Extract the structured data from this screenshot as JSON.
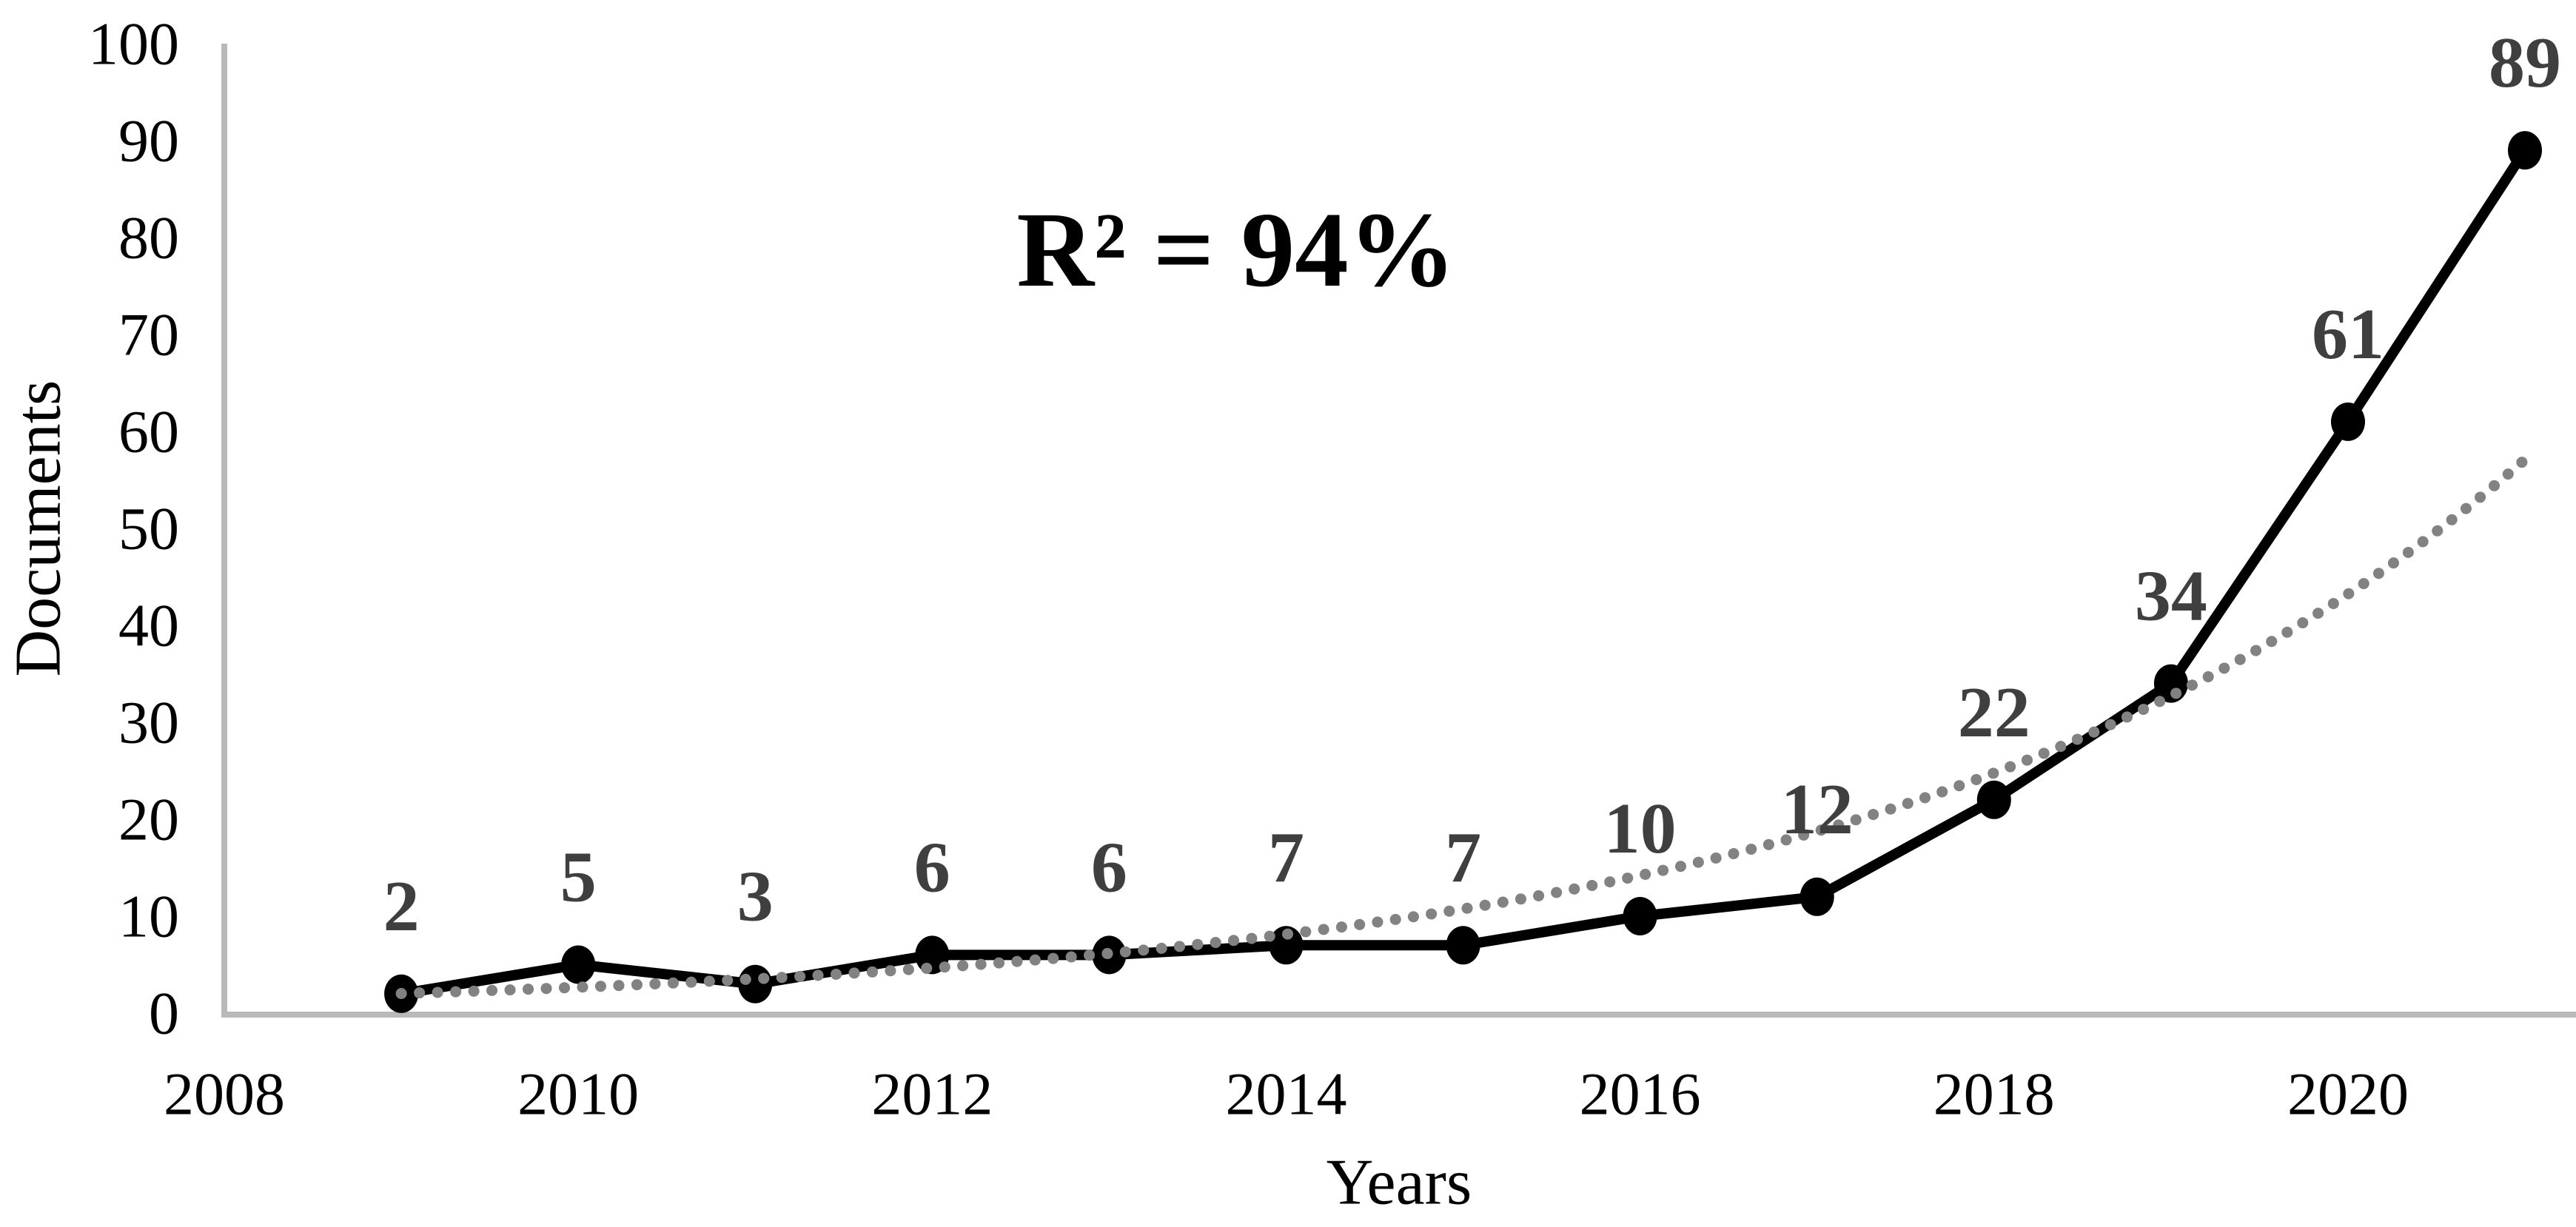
{
  "chart_data": {
    "type": "line",
    "title": "",
    "xlabel": "Years",
    "ylabel": "Documents",
    "x": [
      2009,
      2010,
      2011,
      2012,
      2013,
      2014,
      2015,
      2016,
      2017,
      2018,
      2019,
      2020,
      2021
    ],
    "series": [
      {
        "name": "Documents",
        "values": [
          2,
          5,
          3,
          6,
          6,
          7,
          7,
          10,
          12,
          22,
          34,
          61,
          89
        ],
        "color": "#000000",
        "line_style": "solid",
        "marker": "circle",
        "marker_color": "#000000"
      }
    ],
    "data_labels": [
      "2",
      "5",
      "3",
      "6",
      "6",
      "7",
      "7",
      "10",
      "12",
      "22",
      "34",
      "61",
      "89"
    ],
    "data_label_color": "#3f3f3f",
    "trendline": {
      "name": "Exponential trendline",
      "model": "exponential",
      "a": 2.024,
      "b": 0.2783,
      "start_year": 2009,
      "end_year": 2021,
      "style": "dotted",
      "color": "#828282"
    },
    "annotation": {
      "text": "R² = 94%",
      "color": "#000000"
    },
    "x_ticks": [
      "2008",
      "2010",
      "2012",
      "2014",
      "2016",
      "2018",
      "2020"
    ],
    "x_tick_years": [
      2008,
      2010,
      2012,
      2014,
      2016,
      2018,
      2020
    ],
    "y_ticks": [
      "0",
      "10",
      "20",
      "30",
      "40",
      "50",
      "60",
      "70",
      "80",
      "90",
      "100"
    ],
    "y_tick_values": [
      0,
      10,
      20,
      30,
      40,
      50,
      60,
      70,
      80,
      90,
      100
    ],
    "xlim": [
      2008,
      2021.29
    ],
    "ylim": [
      0,
      100
    ],
    "grid": false,
    "legend": "none",
    "background": "#ffffff",
    "axis_line_color": "#b9b9b9",
    "tick_label_color": "#000000",
    "axis_title_color": "#000000"
  }
}
